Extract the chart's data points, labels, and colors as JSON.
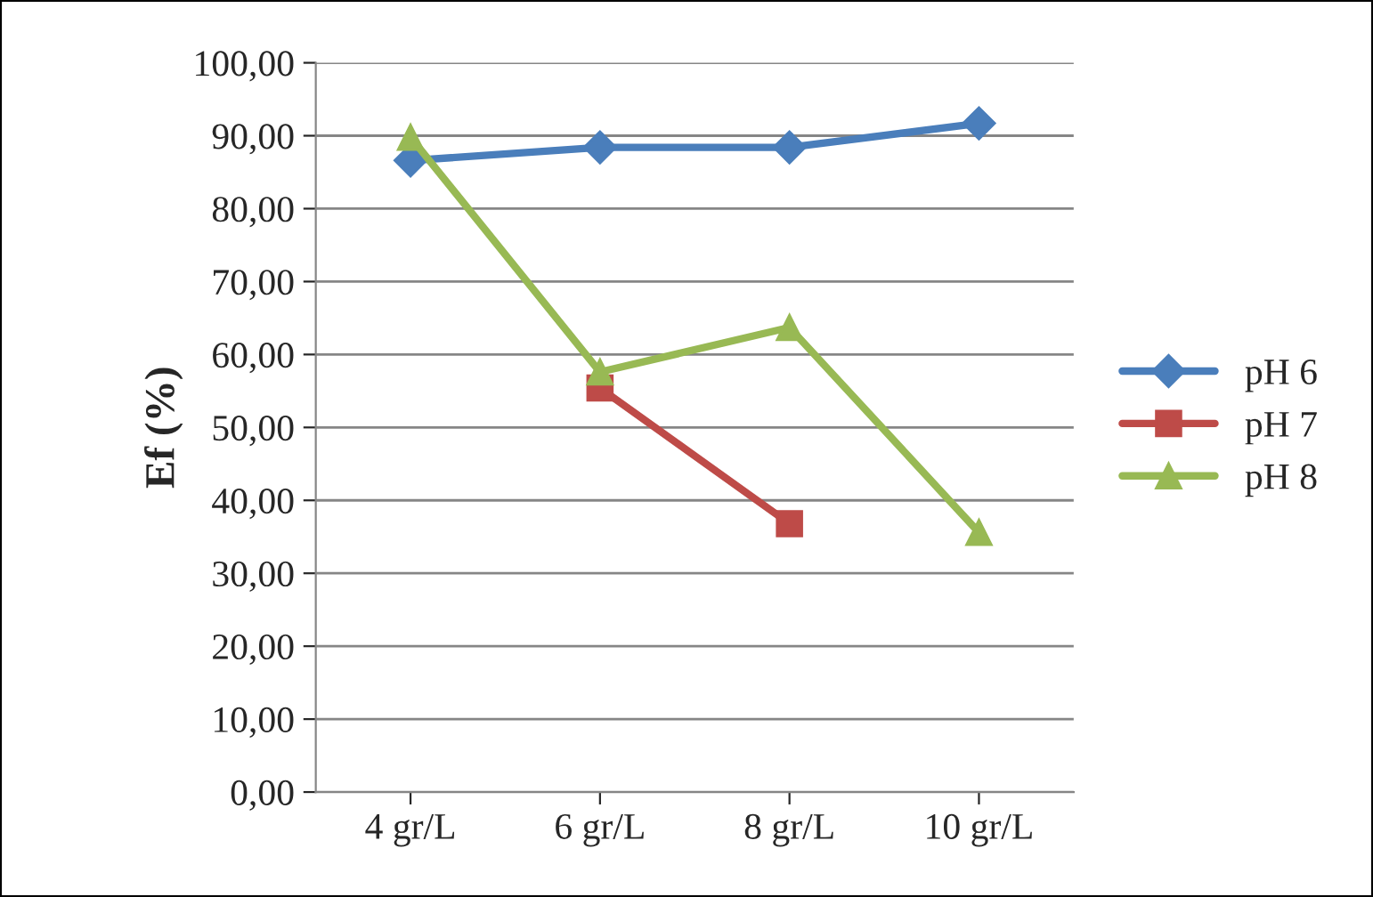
{
  "chart_data": {
    "type": "line",
    "ylabel": "Ef (%)",
    "categories": [
      "4 gr/L",
      "6 gr/L",
      "8 gr/L",
      "10 gr/L"
    ],
    "series": [
      {
        "name": "pH 6",
        "color": "#4a7ebb",
        "marker": "diamond",
        "values": [
          86.6,
          88.4,
          88.4,
          91.7
        ]
      },
      {
        "name": "pH 7",
        "color": "#be4b48",
        "marker": "square",
        "values": [
          null,
          55.4,
          36.8,
          null
        ]
      },
      {
        "name": "pH 8",
        "color": "#98b954",
        "marker": "triangle",
        "values": [
          89.8,
          57.6,
          63.7,
          35.6
        ]
      }
    ],
    "ylim": [
      0,
      100
    ],
    "yticks": [
      {
        "value": 0,
        "label": "0,00"
      },
      {
        "value": 10,
        "label": "10,00"
      },
      {
        "value": 20,
        "label": "20,00"
      },
      {
        "value": 30,
        "label": "30,00"
      },
      {
        "value": 40,
        "label": "40,00"
      },
      {
        "value": 50,
        "label": "50,00"
      },
      {
        "value": 60,
        "label": "60,00"
      },
      {
        "value": 70,
        "label": "70,00"
      },
      {
        "value": 80,
        "label": "80,00"
      },
      {
        "value": 90,
        "label": "90,00"
      },
      {
        "value": 100,
        "label": "100,00"
      }
    ],
    "grid": "y",
    "legend": "right",
    "line_style": "solid"
  }
}
